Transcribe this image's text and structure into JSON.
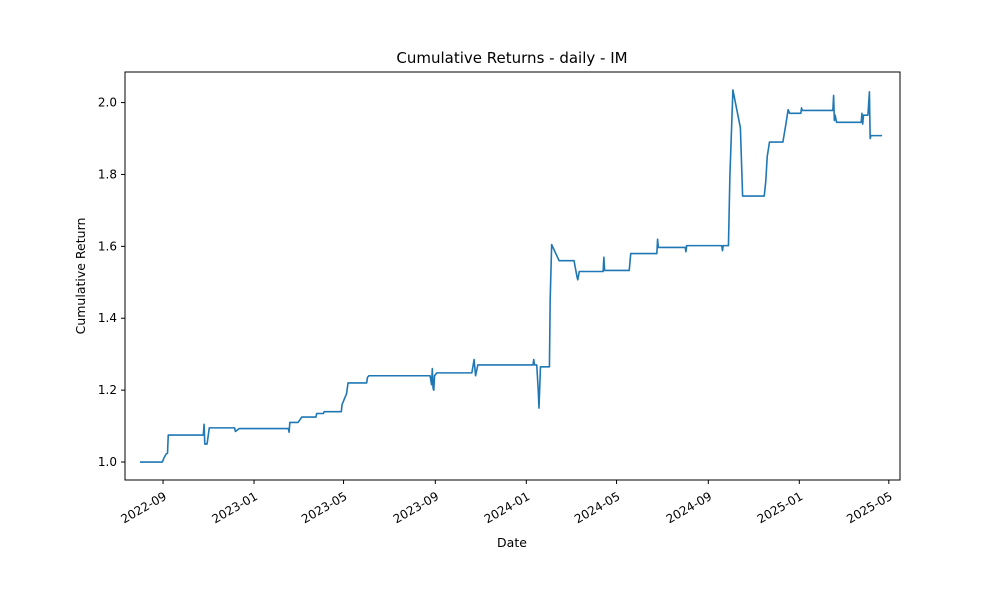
{
  "chart_data": {
    "type": "line",
    "title": "Cumulative Returns - daily - IM",
    "xlabel": "Date",
    "ylabel": "Cumulative Return",
    "xlim": [
      "2022-07-12",
      "2025-05-16"
    ],
    "ylim": [
      0.95,
      2.085
    ],
    "grid": false,
    "line_color": "#1f77b4",
    "x_ticks": [
      "2022-09",
      "2023-01",
      "2023-05",
      "2023-09",
      "2024-01",
      "2024-05",
      "2024-09",
      "2025-01",
      "2025-05"
    ],
    "y_ticks": [
      "1.0",
      "1.2",
      "1.4",
      "1.6",
      "1.8",
      "2.0"
    ],
    "series": [
      {
        "points": [
          [
            "2022-08-01",
            1.0
          ],
          [
            "2022-08-31",
            1.0
          ],
          [
            "2022-09-02",
            1.01
          ],
          [
            "2022-09-05",
            1.022
          ],
          [
            "2022-09-07",
            1.025
          ],
          [
            "2022-09-08",
            1.075
          ],
          [
            "2022-10-25",
            1.075
          ],
          [
            "2022-10-26",
            1.105
          ],
          [
            "2022-10-27",
            1.05
          ],
          [
            "2022-10-30",
            1.05
          ],
          [
            "2022-11-02",
            1.095
          ],
          [
            "2022-12-06",
            1.095
          ],
          [
            "2022-12-07",
            1.085
          ],
          [
            "2022-12-12",
            1.093
          ],
          [
            "2023-02-16",
            1.093
          ],
          [
            "2023-02-17",
            1.083
          ],
          [
            "2023-02-18",
            1.11
          ],
          [
            "2023-03-01",
            1.11
          ],
          [
            "2023-03-06",
            1.125
          ],
          [
            "2023-03-25",
            1.125
          ],
          [
            "2023-03-26",
            1.135
          ],
          [
            "2023-04-04",
            1.135
          ],
          [
            "2023-04-05",
            1.14
          ],
          [
            "2023-04-28",
            1.14
          ],
          [
            "2023-04-29",
            1.16
          ],
          [
            "2023-05-05",
            1.19
          ],
          [
            "2023-05-07",
            1.22
          ],
          [
            "2023-06-01",
            1.22
          ],
          [
            "2023-06-02",
            1.235
          ],
          [
            "2023-06-04",
            1.24
          ],
          [
            "2023-08-25",
            1.24
          ],
          [
            "2023-08-27",
            1.215
          ],
          [
            "2023-08-28",
            1.26
          ],
          [
            "2023-08-29",
            1.205
          ],
          [
            "2023-08-30",
            1.2
          ],
          [
            "2023-08-31",
            1.24
          ],
          [
            "2023-09-03",
            1.248
          ],
          [
            "2023-10-20",
            1.248
          ],
          [
            "2023-10-23",
            1.285
          ],
          [
            "2023-10-25",
            1.24
          ],
          [
            "2023-10-28",
            1.27
          ],
          [
            "2024-01-10",
            1.27
          ],
          [
            "2024-01-11",
            1.285
          ],
          [
            "2024-01-12",
            1.27
          ],
          [
            "2024-01-15",
            1.27
          ],
          [
            "2024-01-17",
            1.2
          ],
          [
            "2024-01-18",
            1.15
          ],
          [
            "2024-01-20",
            1.265
          ],
          [
            "2024-02-01",
            1.265
          ],
          [
            "2024-02-02",
            1.45
          ],
          [
            "2024-02-04",
            1.605
          ],
          [
            "2024-02-14",
            1.56
          ],
          [
            "2024-03-05",
            1.56
          ],
          [
            "2024-03-09",
            1.515
          ],
          [
            "2024-03-10",
            1.507
          ],
          [
            "2024-03-12",
            1.53
          ],
          [
            "2024-04-13",
            1.53
          ],
          [
            "2024-04-14",
            1.57
          ],
          [
            "2024-04-15",
            1.533
          ],
          [
            "2024-05-18",
            1.533
          ],
          [
            "2024-05-20",
            1.58
          ],
          [
            "2024-06-24",
            1.58
          ],
          [
            "2024-06-25",
            1.62
          ],
          [
            "2024-06-26",
            1.597
          ],
          [
            "2024-08-01",
            1.597
          ],
          [
            "2024-08-02",
            1.585
          ],
          [
            "2024-08-03",
            1.602
          ],
          [
            "2024-09-19",
            1.602
          ],
          [
            "2024-09-20",
            1.588
          ],
          [
            "2024-09-21",
            1.602
          ],
          [
            "2024-09-28",
            1.602
          ],
          [
            "2024-09-30",
            1.8
          ],
          [
            "2024-10-04",
            2.035
          ],
          [
            "2024-10-14",
            1.93
          ],
          [
            "2024-10-17",
            1.74
          ],
          [
            "2024-11-15",
            1.74
          ],
          [
            "2024-11-17",
            1.78
          ],
          [
            "2024-11-19",
            1.85
          ],
          [
            "2024-11-22",
            1.89
          ],
          [
            "2024-12-10",
            1.89
          ],
          [
            "2024-12-14",
            1.94
          ],
          [
            "2024-12-17",
            1.98
          ],
          [
            "2024-12-19",
            1.97
          ],
          [
            "2025-01-03",
            1.97
          ],
          [
            "2025-01-04",
            1.985
          ],
          [
            "2025-01-05",
            1.978
          ],
          [
            "2025-02-15",
            1.978
          ],
          [
            "2025-02-16",
            2.02
          ],
          [
            "2025-02-17",
            1.95
          ],
          [
            "2025-02-18",
            1.965
          ],
          [
            "2025-02-20",
            1.945
          ],
          [
            "2025-03-25",
            1.945
          ],
          [
            "2025-03-26",
            1.97
          ],
          [
            "2025-03-27",
            1.94
          ],
          [
            "2025-03-28",
            1.965
          ],
          [
            "2025-04-03",
            1.965
          ],
          [
            "2025-04-05",
            2.03
          ],
          [
            "2025-04-06",
            1.9
          ],
          [
            "2025-04-07",
            1.908
          ],
          [
            "2025-04-22",
            1.908
          ]
        ]
      }
    ]
  }
}
